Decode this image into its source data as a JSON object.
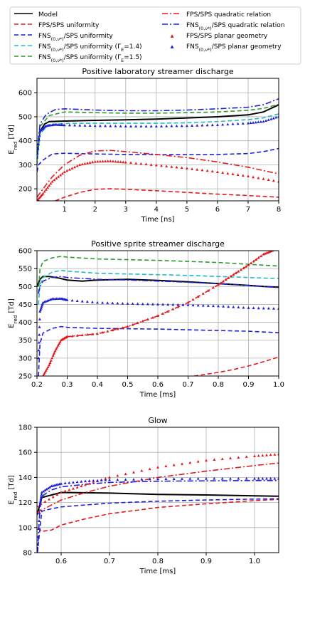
{
  "legend": {
    "location": "top",
    "columns": 2,
    "entries": [
      {
        "label": "Model",
        "color": "#000000",
        "style": "solid"
      },
      {
        "label": "FPS/SPS uniformity",
        "color": "#e31a1c",
        "style": "dashed"
      },
      {
        "label": "FNS(0,v*)/SPS uniformity",
        "color": "#1f1fd6",
        "style": "dashed"
      },
      {
        "label": "FNS(0,v*)/SPS uniformity (ΓE=1.4)",
        "color": "#1fbcc8",
        "style": "dashed"
      },
      {
        "label": "FNS(0,v*)/SPS uniformity (ΓE=1.5)",
        "color": "#2c9a2c",
        "style": "dashed"
      },
      {
        "label": "FPS/SPS quadratic relation",
        "color": "#e31a1c",
        "style": "dashdot"
      },
      {
        "label": "FNS(0,v*)/SPS quadratic relation",
        "color": "#1f1fd6",
        "style": "dashdot"
      },
      {
        "label": "FPS/SPS planar geometry",
        "color": "#e31a1c",
        "style": "triangles"
      },
      {
        "label": "FNS(0,v*)/SPS planar geometry",
        "color": "#1f1fd6",
        "style": "triangles"
      }
    ]
  },
  "chart_data": [
    {
      "type": "line",
      "title": "Positive laboratory streamer discharge",
      "xlabel": "Time [ns]",
      "ylabel": "Ered [Td]",
      "xlim": [
        0.1,
        8
      ],
      "ylim": [
        150,
        660
      ],
      "grid": true,
      "xticks": [
        1,
        2,
        3,
        4,
        5,
        6,
        7,
        8
      ],
      "yticks": [
        200,
        300,
        400,
        500,
        600
      ],
      "series": [
        {
          "name": "Model",
          "x": [
            0.1,
            0.2,
            0.35,
            0.5,
            1,
            2,
            3,
            4,
            5,
            6,
            7,
            7.5,
            8
          ],
          "y": [
            330,
            440,
            470,
            480,
            482,
            485,
            487,
            490,
            495,
            500,
            508,
            520,
            550
          ]
        },
        {
          "name": "FPS/SPS uniformity",
          "x": [
            0.7,
            1,
            1.5,
            2,
            2.5,
            3,
            4,
            5,
            6,
            7,
            8
          ],
          "y": [
            150,
            165,
            185,
            198,
            200,
            198,
            192,
            185,
            178,
            172,
            165
          ]
        },
        {
          "name": "FNS(0,v*)/SPS uniformity",
          "x": [
            0.1,
            0.15,
            0.3,
            0.6,
            1,
            2,
            3,
            4,
            5,
            6,
            7,
            7.5,
            8
          ],
          "y": [
            270,
            300,
            320,
            345,
            348,
            345,
            343,
            342,
            342,
            343,
            347,
            355,
            368
          ]
        },
        {
          "name": "FNS(0,v*)/SPS uniformity (ΓE=1.4)",
          "x": [
            0.1,
            0.2,
            0.5,
            1,
            2,
            3,
            4,
            5,
            6,
            7,
            7.5,
            8
          ],
          "y": [
            300,
            430,
            468,
            472,
            473,
            473,
            473,
            475,
            480,
            488,
            495,
            512
          ]
        },
        {
          "name": "FNS(0,v*)/SPS uniformity (ΓE=1.5)",
          "x": [
            0.1,
            0.2,
            0.5,
            1,
            2,
            3,
            4,
            5,
            6,
            7,
            7.5,
            8
          ],
          "y": [
            320,
            460,
            505,
            520,
            517,
            515,
            515,
            517,
            520,
            527,
            535,
            552
          ]
        },
        {
          "name": "FPS/SPS quadratic relation",
          "x": [
            0.1,
            0.3,
            0.6,
            1,
            1.5,
            2,
            2.5,
            3,
            4,
            5,
            6,
            7,
            8
          ],
          "y": [
            165,
            200,
            250,
            300,
            340,
            358,
            360,
            355,
            343,
            330,
            312,
            290,
            262
          ]
        },
        {
          "name": "FNS(0,v*)/SPS quadratic relation",
          "x": [
            0.1,
            0.2,
            0.4,
            0.7,
            1,
            2,
            3,
            4,
            5,
            6,
            7,
            7.5,
            8
          ],
          "y": [
            350,
            470,
            510,
            530,
            533,
            528,
            525,
            525,
            528,
            533,
            540,
            550,
            575
          ]
        },
        {
          "name": "FPS/SPS planar geometry",
          "x": [
            0.1,
            0.3,
            0.6,
            1,
            1.5,
            2,
            2.5,
            3,
            4,
            5,
            6,
            7,
            8
          ],
          "y": [
            150,
            180,
            230,
            270,
            300,
            313,
            315,
            310,
            298,
            285,
            270,
            252,
            230
          ]
        },
        {
          "name": "FNS(0,v*)/SPS planar geometry",
          "x": [
            0.1,
            0.2,
            0.4,
            0.7,
            1,
            2,
            3,
            4,
            5,
            6,
            7,
            7.5,
            8
          ],
          "y": [
            330,
            440,
            462,
            467,
            465,
            462,
            460,
            460,
            462,
            466,
            473,
            480,
            500
          ]
        }
      ]
    },
    {
      "type": "line",
      "title": "Positive sprite streamer discharge",
      "xlabel": "Time [ms]",
      "ylabel": "Ered [Td]",
      "xlim": [
        0.2,
        1.0
      ],
      "ylim": [
        250,
        600
      ],
      "grid": true,
      "xticks": [
        0.2,
        0.3,
        0.4,
        0.5,
        0.6,
        0.7,
        0.8,
        0.9,
        1.0
      ],
      "yticks": [
        250,
        300,
        350,
        400,
        450,
        500,
        550,
        600
      ],
      "series": [
        {
          "name": "Model",
          "x": [
            0.2,
            0.21,
            0.22,
            0.24,
            0.27,
            0.3,
            0.35,
            0.4,
            0.5,
            0.6,
            0.7,
            0.8,
            0.9,
            0.95,
            1.0
          ],
          "y": [
            500,
            520,
            528,
            528,
            524,
            518,
            515,
            518,
            520,
            517,
            513,
            508,
            503,
            500,
            498
          ]
        },
        {
          "name": "FPS/SPS uniformity",
          "x": [
            0.72,
            0.8,
            0.85,
            0.9,
            0.95,
            1.0
          ],
          "y": [
            250,
            260,
            268,
            278,
            290,
            303
          ]
        },
        {
          "name": "FNS(0,v*)/SPS uniformity",
          "x": [
            0.205,
            0.21,
            0.22,
            0.25,
            0.28,
            0.3,
            0.4,
            0.5,
            0.6,
            0.7,
            0.8,
            0.9,
            1.0
          ],
          "y": [
            250,
            340,
            370,
            383,
            388,
            386,
            383,
            382,
            381,
            379,
            377,
            375,
            371
          ]
        },
        {
          "name": "FNS(0,v*)/SPS uniformity (ΓE=1.4)",
          "x": [
            0.205,
            0.21,
            0.22,
            0.25,
            0.28,
            0.3,
            0.4,
            0.5,
            0.6,
            0.7,
            0.8,
            0.9,
            1.0
          ],
          "y": [
            450,
            505,
            525,
            540,
            545,
            543,
            537,
            535,
            533,
            531,
            528,
            525,
            522
          ]
        },
        {
          "name": "FNS(0,v*)/SPS uniformity (ΓE=1.5)",
          "x": [
            0.205,
            0.21,
            0.22,
            0.25,
            0.28,
            0.3,
            0.4,
            0.5,
            0.6,
            0.7,
            0.8,
            0.9,
            1.0
          ],
          "y": [
            480,
            548,
            570,
            580,
            584,
            582,
            577,
            575,
            573,
            570,
            567,
            562,
            557
          ]
        },
        {
          "name": "FPS/SPS quadratic relation",
          "x": [
            0.22,
            0.24,
            0.26,
            0.28,
            0.3,
            0.4,
            0.5,
            0.6,
            0.7,
            0.8,
            0.85,
            0.9,
            0.95,
            0.98
          ],
          "y": [
            250,
            280,
            320,
            350,
            360,
            368,
            388,
            418,
            455,
            505,
            533,
            560,
            590,
            600
          ]
        },
        {
          "name": "FNS(0,v*)/SPS quadratic relation",
          "x": [
            0.205,
            0.21,
            0.22,
            0.25,
            0.28,
            0.3,
            0.4,
            0.5,
            0.6,
            0.7,
            0.8,
            0.9,
            1.0
          ],
          "y": [
            480,
            500,
            515,
            525,
            528,
            525,
            520,
            518,
            515,
            512,
            508,
            503,
            497
          ]
        },
        {
          "name": "FPS/SPS planar geometry",
          "x": [
            0.22,
            0.24,
            0.26,
            0.28,
            0.3,
            0.4,
            0.5,
            0.6,
            0.7,
            0.8,
            0.85,
            0.9,
            0.95,
            0.98
          ],
          "y": [
            250,
            280,
            320,
            350,
            360,
            368,
            388,
            418,
            455,
            505,
            533,
            560,
            590,
            600
          ]
        },
        {
          "name": "FNS(0,v*)/SPS planar geometry",
          "x": [
            0.205,
            0.21,
            0.22,
            0.25,
            0.28,
            0.3,
            0.4,
            0.5,
            0.6,
            0.7,
            0.8,
            0.9,
            1.0
          ],
          "y": [
            300,
            430,
            455,
            465,
            466,
            462,
            455,
            452,
            450,
            448,
            445,
            440,
            438
          ]
        }
      ]
    },
    {
      "type": "line",
      "title": "Glow",
      "xlabel": "Time [ms]",
      "ylabel": "Ered [Td]",
      "xlim": [
        0.55,
        1.05
      ],
      "ylim": [
        80,
        180
      ],
      "grid": true,
      "xticks": [
        0.6,
        0.7,
        0.8,
        0.9,
        1.0
      ],
      "yticks": [
        80,
        100,
        120,
        140,
        160,
        180
      ],
      "series": [
        {
          "name": "Model",
          "x": [
            0.55,
            0.56,
            0.6,
            0.7,
            0.8,
            0.9,
            1.0,
            1.05
          ],
          "y": [
            110,
            124,
            128,
            127.5,
            126.5,
            126,
            125.3,
            125
          ]
        },
        {
          "name": "FPS/SPS uniformity",
          "x": [
            0.552,
            0.56,
            0.58,
            0.6,
            0.65,
            0.7,
            0.8,
            0.9,
            1.0,
            1.05
          ],
          "y": [
            100,
            97,
            98,
            102,
            107,
            111,
            116,
            119,
            121.5,
            122.5
          ]
        },
        {
          "name": "FNS(0,v*)/SPS uniformity",
          "x": [
            0.551,
            0.555,
            0.56,
            0.58,
            0.6,
            0.65,
            0.7,
            0.8,
            0.9,
            1.0,
            1.05
          ],
          "y": [
            80,
            95,
            113,
            115,
            116.5,
            118,
            119.5,
            121,
            122,
            122.7,
            123
          ]
        },
        {
          "name": "FNS(0,v*)/SPS uniformity (ΓE=1.4)",
          "x": [],
          "y": []
        },
        {
          "name": "FNS(0,v*)/SPS uniformity (ΓE=1.5)",
          "x": [],
          "y": []
        },
        {
          "name": "FPS/SPS quadratic relation",
          "x": [
            0.55,
            0.6,
            0.65,
            0.7,
            0.8,
            0.9,
            1.0,
            1.05
          ],
          "y": [
            112,
            122,
            128,
            133,
            140,
            145,
            149.5,
            151.5
          ]
        },
        {
          "name": "FNS(0,v*)/SPS quadratic relation",
          "x": [
            0.551,
            0.556,
            0.56,
            0.58,
            0.6,
            0.65,
            0.7,
            0.8,
            0.9,
            1.0,
            1.05
          ],
          "y": [
            80,
            115,
            125,
            130,
            132.5,
            134.5,
            136,
            137,
            137.3,
            137.5,
            137.5
          ]
        },
        {
          "name": "FPS/SPS planar geometry",
          "x": [
            0.55,
            0.6,
            0.65,
            0.7,
            0.8,
            0.9,
            1.0,
            1.05
          ],
          "y": [
            117,
            128,
            134,
            140,
            148,
            153.5,
            157,
            158.5
          ]
        },
        {
          "name": "FNS(0,v*)/SPS planar geometry",
          "x": [
            0.551,
            0.556,
            0.56,
            0.58,
            0.6,
            0.65,
            0.7,
            0.8,
            0.9,
            1.0,
            1.05
          ],
          "y": [
            80,
            118,
            128,
            133,
            135,
            137,
            138,
            138.7,
            139,
            139,
            139
          ]
        }
      ]
    }
  ]
}
